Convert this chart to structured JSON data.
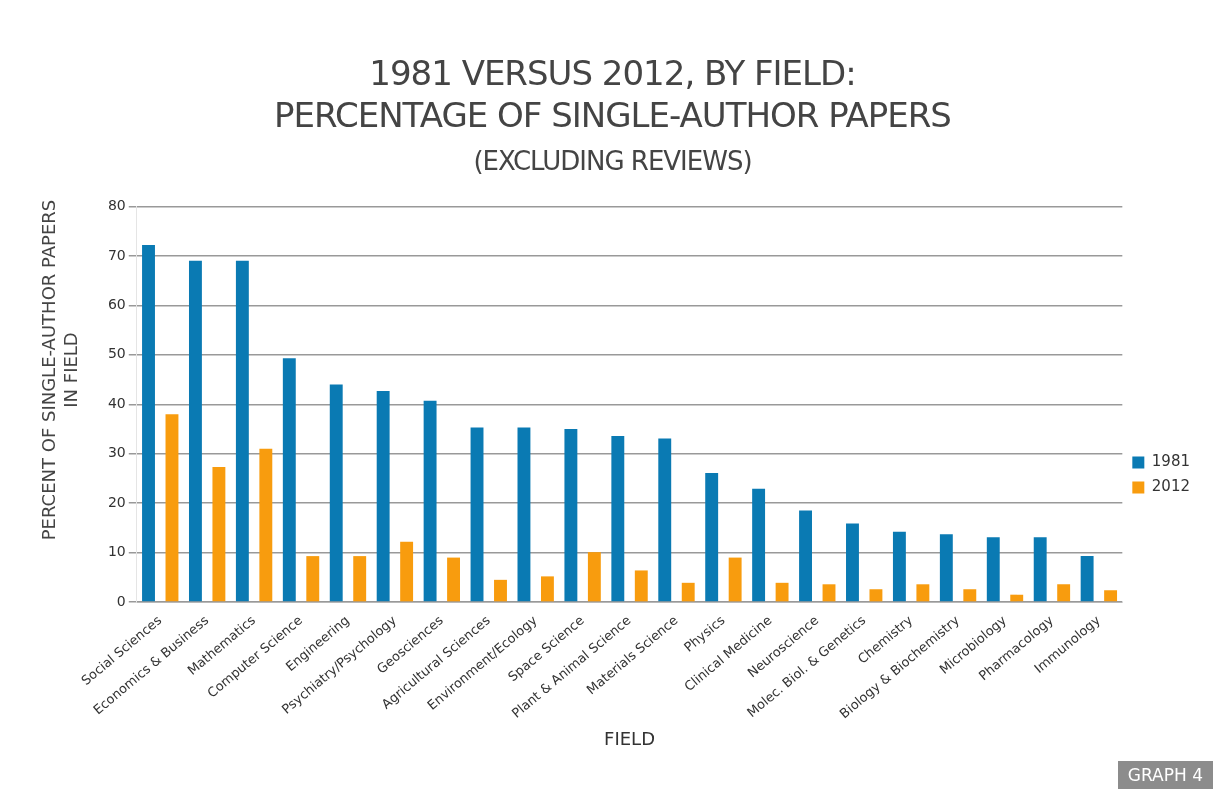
{
  "chart_data": {
    "type": "bar",
    "title": "1981 VERSUS 2012, BY FIELD:\nPERCENTAGE OF SINGLE-AUTHOR PAPERS",
    "subtitle": "(EXCLUDING REVIEWS)",
    "xlabel": "FIELD",
    "ylabel": "PERCENT OF SINGLE-AUTHOR PAPERS\nIN FIELD",
    "categories": [
      "Social Sciences",
      "Economics & Business",
      "Mathematics",
      "Computer Science",
      "Engineering",
      "Psychiatry/Psychology",
      "Geosciences",
      "Agricultural Sciences",
      "Environment/Ecology",
      "Space Science",
      "Plant & Animal Science",
      "Materials Science",
      "Physics",
      "Clinical Medicine",
      "Neuroscience",
      "Molec. Biol. & Genetics",
      "Chemistry",
      "Biology & Biochemistry",
      "Microbiology",
      "Pharmacology",
      "Immunology"
    ],
    "series": [
      {
        "name": "1981",
        "color": "#0a7ab3",
        "values": [
          72.2,
          69,
          69,
          49.3,
          44,
          42.7,
          40.7,
          35.3,
          35.3,
          35,
          33.6,
          33.1,
          26.1,
          22.9,
          18.5,
          15.9,
          14.2,
          13.7,
          13.1,
          13.1,
          9.3
        ]
      },
      {
        "name": "2012",
        "color": "#f89c0e",
        "values": [
          38,
          27.3,
          31,
          9.3,
          9.3,
          12.2,
          9,
          4.5,
          5.2,
          10.1,
          6.4,
          3.9,
          9,
          3.9,
          3.6,
          2.6,
          3.6,
          2.6,
          1.5,
          3.6,
          2.4
        ]
      }
    ],
    "ylim": [
      0,
      80
    ],
    "yticks": [
      0,
      10,
      20,
      30,
      40,
      50,
      60,
      70,
      80
    ],
    "grid": "y",
    "legend": "right",
    "annotations": [
      "GRAPH 4"
    ]
  }
}
